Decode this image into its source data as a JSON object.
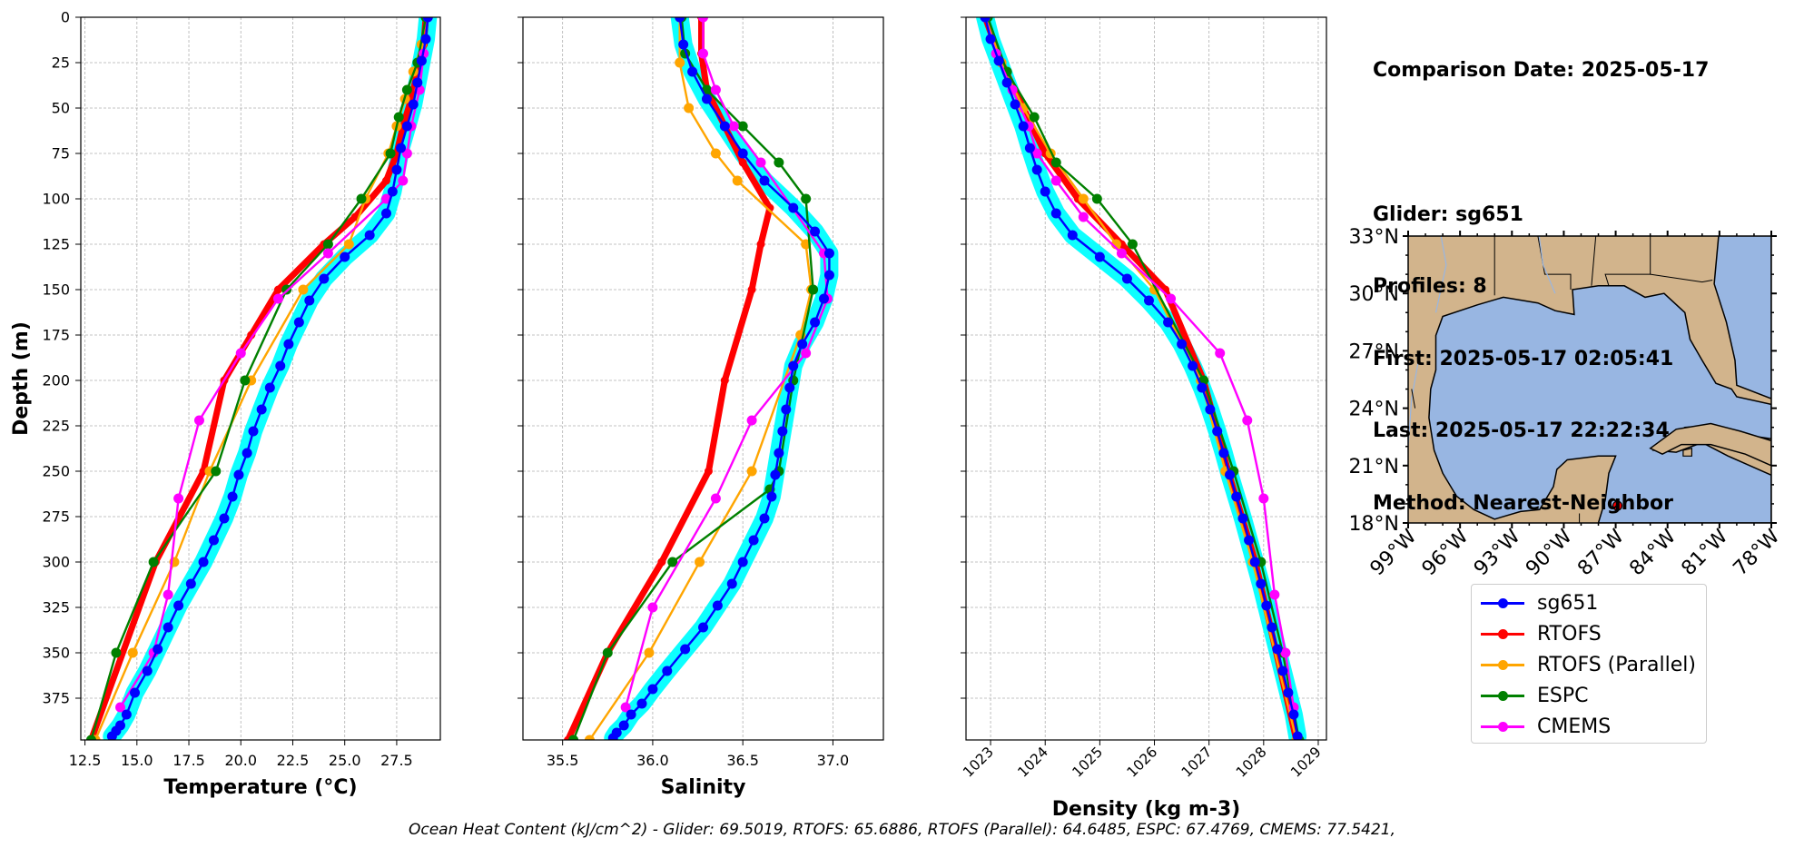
{
  "info": {
    "comparison_date": "Comparison Date: 2025-05-17",
    "glider": "Glider: sg651",
    "profiles": "Profiles: 8",
    "first": "First: 2025-05-17 02:05:41",
    "last": "Last: 2025-05-17 22:22:34",
    "method": "Method: Nearest-Neighbor"
  },
  "footer": "Ocean Heat Content (kJ/cm^2) - Glider: 69.5019,  RTOFS: 65.6886,  RTOFS (Parallel): 64.6485,  ESPC: 67.4769,  CMEMS: 77.5421,",
  "legend": [
    {
      "name": "sg651",
      "color": "#0000ff"
    },
    {
      "name": "RTOFS",
      "color": "#ff0000"
    },
    {
      "name": "RTOFS (Parallel)",
      "color": "#ffa500"
    },
    {
      "name": "ESPC",
      "color": "#008000"
    },
    {
      "name": "CMEMS",
      "color": "#ff00ff"
    }
  ],
  "colors": {
    "glider_spread": "#00ffff",
    "land": "#d2b48c",
    "ocean": "#98b6e2"
  },
  "chart_data": [
    {
      "type": "line",
      "xlabel": "Temperature (°C)",
      "ylabel": "Depth (m)",
      "xlim": [
        12.3,
        29.6
      ],
      "ylim": [
        398,
        0
      ],
      "xticks": [
        "12.5",
        "15.0",
        "17.5",
        "20.0",
        "22.5",
        "25.0",
        "27.5"
      ],
      "yticks": [
        "0",
        "25",
        "50",
        "75",
        "100",
        "125",
        "150",
        "175",
        "200",
        "225",
        "250",
        "275",
        "300",
        "325",
        "350",
        "375"
      ],
      "grid": true,
      "series": [
        {
          "name": "sg651",
          "x": [
            29.0,
            28.9,
            28.7,
            28.5,
            28.3,
            28.0,
            27.7,
            27.5,
            27.3,
            27.0,
            26.2,
            25.0,
            24.0,
            23.3,
            22.8,
            22.3,
            21.9,
            21.4,
            21.0,
            20.6,
            20.3,
            19.9,
            19.6,
            19.2,
            18.7,
            18.2,
            17.6,
            17.0,
            16.5,
            16.0,
            15.5,
            14.9,
            14.5,
            14.2,
            14.0,
            13.8
          ],
          "y": [
            0,
            12,
            24,
            36,
            48,
            60,
            72,
            84,
            96,
            108,
            120,
            132,
            144,
            156,
            168,
            180,
            192,
            204,
            216,
            228,
            240,
            252,
            264,
            276,
            288,
            300,
            312,
            324,
            336,
            348,
            360,
            372,
            384,
            390,
            393,
            396
          ]
        },
        {
          "name": "RTOFS",
          "x": [
            28.9,
            28.8,
            28.5,
            28.2,
            27.8,
            27.5,
            27.0,
            25.5,
            24.0,
            21.8,
            20.5,
            19.2,
            18.2,
            15.9,
            12.8
          ],
          "y": [
            0,
            15,
            30,
            45,
            60,
            75,
            90,
            110,
            125,
            150,
            175,
            200,
            250,
            300,
            398
          ]
        },
        {
          "name": "RTOFS (Parallel)",
          "x": [
            28.9,
            28.7,
            28.3,
            27.9,
            27.5,
            27.1,
            26.0,
            25.2,
            23.0,
            20.5,
            18.5,
            16.8,
            14.8,
            13.0
          ],
          "y": [
            0,
            15,
            30,
            45,
            60,
            75,
            100,
            125,
            150,
            200,
            250,
            300,
            350,
            398
          ]
        },
        {
          "name": "ESPC",
          "x": [
            28.9,
            28.5,
            28.0,
            27.6,
            27.2,
            25.8,
            24.2,
            22.2,
            20.2,
            18.8,
            15.8,
            14.0,
            12.8
          ],
          "y": [
            0,
            25,
            40,
            55,
            75,
            100,
            125,
            150,
            200,
            250,
            300,
            350,
            398
          ]
        },
        {
          "name": "CMEMS",
          "x": [
            29.0,
            28.8,
            28.6,
            28.2,
            28.0,
            27.8,
            27.0,
            24.2,
            21.8,
            20.0,
            18.0,
            17.0,
            16.5,
            15.8,
            14.2
          ],
          "y": [
            0,
            20,
            40,
            60,
            75,
            90,
            100,
            130,
            155,
            185,
            222,
            265,
            318,
            350,
            380
          ]
        }
      ]
    },
    {
      "type": "line",
      "xlabel": "Salinity",
      "xlim": [
        35.28,
        37.28
      ],
      "ylim": [
        398,
        0
      ],
      "xticks": [
        "35.5",
        "36.0",
        "36.5",
        "37.0"
      ],
      "grid": true,
      "series": [
        {
          "name": "sg651",
          "x": [
            36.15,
            36.17,
            36.22,
            36.3,
            36.4,
            36.5,
            36.62,
            36.78,
            36.9,
            36.98,
            36.98,
            36.95,
            36.9,
            36.83,
            36.78,
            36.76,
            36.74,
            36.72,
            36.7,
            36.68,
            36.66,
            36.62,
            36.56,
            36.5,
            36.44,
            36.36,
            36.28,
            36.18,
            36.08,
            36.0,
            35.94,
            35.88,
            35.84,
            35.8,
            35.78
          ],
          "y": [
            0,
            15,
            30,
            45,
            60,
            75,
            90,
            105,
            118,
            130,
            142,
            155,
            168,
            180,
            192,
            204,
            216,
            228,
            240,
            252,
            264,
            276,
            288,
            300,
            312,
            324,
            336,
            348,
            360,
            370,
            378,
            384,
            390,
            394,
            397
          ]
        },
        {
          "name": "RTOFS",
          "x": [
            36.27,
            36.27,
            36.3,
            36.4,
            36.5,
            36.65,
            36.6,
            36.55,
            36.4,
            36.31,
            36.05,
            35.75,
            35.53
          ],
          "y": [
            0,
            20,
            40,
            60,
            80,
            105,
            125,
            150,
            200,
            250,
            300,
            350,
            398
          ]
        },
        {
          "name": "RTOFS (Parallel)",
          "x": [
            36.15,
            36.15,
            36.2,
            36.35,
            36.47,
            36.85,
            36.88,
            36.82,
            36.55,
            36.26,
            35.98,
            35.65
          ],
          "y": [
            0,
            25,
            50,
            75,
            90,
            125,
            150,
            175,
            250,
            300,
            350,
            398
          ]
        },
        {
          "name": "ESPC",
          "x": [
            36.16,
            36.18,
            36.3,
            36.5,
            36.7,
            36.85,
            36.89,
            36.78,
            36.7,
            36.65,
            36.11,
            35.75,
            35.56
          ],
          "y": [
            0,
            20,
            40,
            60,
            80,
            100,
            150,
            200,
            250,
            260,
            300,
            350,
            398
          ]
        },
        {
          "name": "CMEMS",
          "x": [
            36.28,
            36.28,
            36.35,
            36.45,
            36.6,
            36.95,
            36.97,
            36.85,
            36.55,
            36.35,
            36.0,
            35.85
          ],
          "y": [
            0,
            20,
            40,
            60,
            80,
            130,
            155,
            185,
            222,
            265,
            325,
            380
          ]
        }
      ]
    },
    {
      "type": "line",
      "xlabel": "Density (kg m-3)",
      "xlim": [
        1022.55,
        1029.15
      ],
      "ylim": [
        398,
        0
      ],
      "xticks": [
        "1023",
        "1024",
        "1025",
        "1026",
        "1027",
        "1028",
        "1029"
      ],
      "grid": true,
      "series": [
        {
          "name": "sg651",
          "x": [
            1022.9,
            1023.0,
            1023.15,
            1023.3,
            1023.45,
            1023.6,
            1023.72,
            1023.85,
            1024.0,
            1024.2,
            1024.5,
            1025.0,
            1025.5,
            1025.9,
            1026.25,
            1026.5,
            1026.7,
            1026.87,
            1027.02,
            1027.15,
            1027.27,
            1027.38,
            1027.5,
            1027.62,
            1027.73,
            1027.84,
            1027.95,
            1028.05,
            1028.15,
            1028.25,
            1028.35,
            1028.45,
            1028.55,
            1028.62
          ],
          "y": [
            0,
            12,
            24,
            36,
            48,
            60,
            72,
            84,
            96,
            108,
            120,
            132,
            144,
            156,
            168,
            180,
            192,
            204,
            216,
            228,
            240,
            252,
            264,
            276,
            288,
            300,
            312,
            324,
            336,
            348,
            360,
            372,
            384,
            396
          ]
        },
        {
          "name": "RTOFS",
          "x": [
            1022.9,
            1023.2,
            1023.6,
            1024.0,
            1024.6,
            1025.4,
            1026.2,
            1026.9,
            1027.35,
            1027.85,
            1028.6
          ],
          "y": [
            0,
            25,
            50,
            75,
            100,
            125,
            150,
            200,
            250,
            300,
            398
          ]
        },
        {
          "name": "RTOFS (Parallel)",
          "x": [
            1022.9,
            1023.2,
            1023.6,
            1024.1,
            1024.7,
            1025.3,
            1026.0,
            1026.85,
            1027.3,
            1027.8,
            1028.6
          ],
          "y": [
            0,
            25,
            50,
            75,
            100,
            125,
            150,
            200,
            250,
            300,
            398
          ]
        },
        {
          "name": "ESPC",
          "x": [
            1022.95,
            1023.3,
            1023.8,
            1024.2,
            1024.95,
            1025.6,
            1026.9,
            1027.45,
            1027.95,
            1028.35,
            1028.65
          ],
          "y": [
            0,
            30,
            55,
            80,
            100,
            125,
            200,
            250,
            300,
            350,
            398
          ]
        },
        {
          "name": "CMEMS",
          "x": [
            1022.9,
            1023.1,
            1023.4,
            1023.7,
            1023.85,
            1024.2,
            1024.7,
            1025.4,
            1026.3,
            1027.2,
            1027.7,
            1028.0,
            1028.2,
            1028.4,
            1028.55
          ],
          "y": [
            0,
            20,
            40,
            60,
            75,
            90,
            110,
            130,
            155,
            185,
            222,
            265,
            318,
            350,
            380
          ]
        }
      ]
    },
    {
      "type": "map",
      "lat_ticks": [
        "18°N",
        "21°N",
        "24°N",
        "27°N",
        "30°N",
        "33°N"
      ],
      "lon_ticks": [
        "99°W",
        "96°W",
        "93°W",
        "90°W",
        "87°W",
        "84°W",
        "81°W",
        "78°W"
      ],
      "lat_range": [
        18,
        33
      ],
      "lon_range": [
        -99,
        -78
      ],
      "glider_location": {
        "lon": -86.9,
        "lat": 18.9
      }
    }
  ]
}
